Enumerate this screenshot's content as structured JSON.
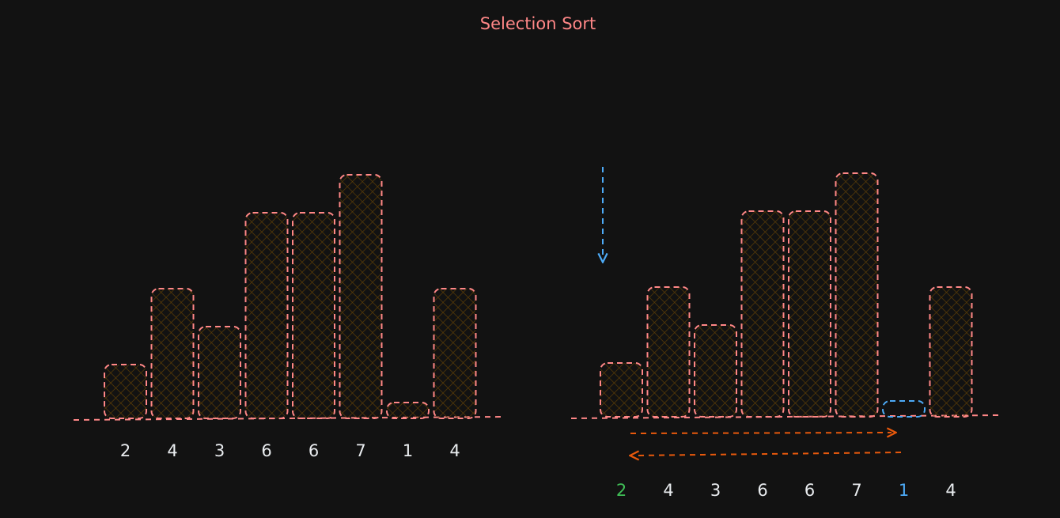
{
  "title": "Selection Sort",
  "colors": {
    "background": "#121212",
    "bar_stroke": "#ff8787",
    "bar_fill": "#3d2a00",
    "hatch": "#5c3d06",
    "baseline": "#ff8787",
    "label_default": "#e9ecef",
    "label_current": "#40c057",
    "label_min": "#4dabf7",
    "min_bar_stroke": "#4dabf7",
    "pointer": "#4dabf7",
    "scan_arrows": "#e8590c"
  },
  "left_panel": {
    "values": [
      2,
      4,
      3,
      6,
      6,
      7,
      1,
      4
    ],
    "labels": [
      "2",
      "4",
      "3",
      "6",
      "6",
      "7",
      "1",
      "4"
    ]
  },
  "right_panel": {
    "values": [
      2,
      4,
      3,
      6,
      6,
      7,
      1,
      4
    ],
    "labels": [
      "2",
      "4",
      "3",
      "6",
      "6",
      "7",
      "1",
      "4"
    ],
    "current_index": 0,
    "min_index": 6
  }
}
